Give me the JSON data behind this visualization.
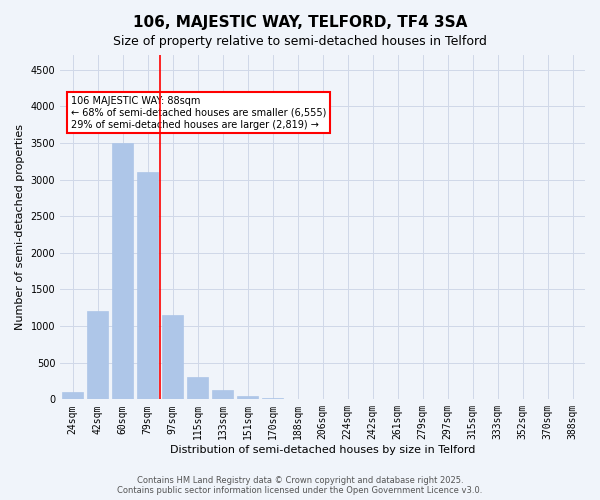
{
  "title": "106, MAJESTIC WAY, TELFORD, TF4 3SA",
  "subtitle": "Size of property relative to semi-detached houses in Telford",
  "xlabel": "Distribution of semi-detached houses by size in Telford",
  "ylabel": "Number of semi-detached properties",
  "categories": [
    "24sqm",
    "42sqm",
    "60sqm",
    "79sqm",
    "97sqm",
    "115sqm",
    "133sqm",
    "151sqm",
    "170sqm",
    "188sqm",
    "206sqm",
    "224sqm",
    "242sqm",
    "261sqm",
    "279sqm",
    "297sqm",
    "315sqm",
    "333sqm",
    "352sqm",
    "370sqm",
    "388sqm"
  ],
  "values": [
    100,
    1200,
    3500,
    3100,
    1150,
    300,
    130,
    50,
    20,
    10,
    5,
    0,
    0,
    0,
    0,
    0,
    0,
    0,
    0,
    0,
    0
  ],
  "bar_color": "#aec6e8",
  "bar_edge_color": "#aec6e8",
  "grid_color": "#d0d8e8",
  "background_color": "#f0f4fa",
  "vline_x": 3,
  "vline_color": "red",
  "vline_label": "106 MAJESTIC WAY: 88sqm",
  "annotation_text": "106 MAJESTIC WAY: 88sqm\n← 68% of semi-detached houses are smaller (6,555)\n29% of semi-detached houses are larger (2,819) →",
  "annotation_box_color": "white",
  "annotation_box_edge": "red",
  "ylim": [
    0,
    4700
  ],
  "yticks": [
    0,
    500,
    1000,
    1500,
    2000,
    2500,
    3000,
    3500,
    4000,
    4500
  ],
  "footer": "Contains HM Land Registry data © Crown copyright and database right 2025.\nContains public sector information licensed under the Open Government Licence v3.0.",
  "title_fontsize": 11,
  "subtitle_fontsize": 9,
  "xlabel_fontsize": 8,
  "ylabel_fontsize": 8,
  "tick_fontsize": 7,
  "footer_fontsize": 6
}
